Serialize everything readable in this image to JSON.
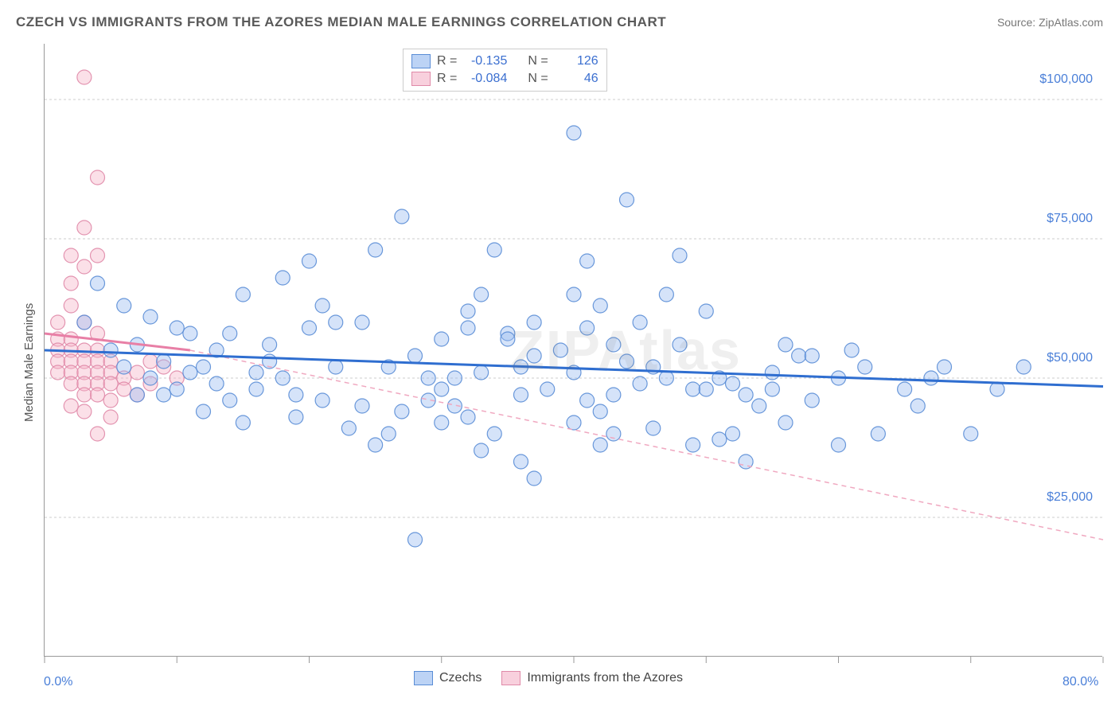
{
  "title": "CZECH VS IMMIGRANTS FROM THE AZORES MEDIAN MALE EARNINGS CORRELATION CHART",
  "source": "Source: ZipAtlas.com",
  "watermark": "ZIPAtlas",
  "y_axis_label": "Median Male Earnings",
  "chart": {
    "type": "scatter",
    "xlim": [
      0,
      80
    ],
    "ylim": [
      0,
      110000
    ],
    "x_ticks_minor": [
      0,
      10,
      20,
      30,
      40,
      50,
      60,
      70,
      80
    ],
    "x_labels": [
      {
        "v": 0,
        "label": "0.0%"
      },
      {
        "v": 80,
        "label": "80.0%"
      }
    ],
    "y_gridlines": [
      25000,
      50000,
      75000,
      100000
    ],
    "y_labels": [
      {
        "v": 25000,
        "label": "$25,000"
      },
      {
        "v": 50000,
        "label": "$50,000"
      },
      {
        "v": 75000,
        "label": "$75,000"
      },
      {
        "v": 100000,
        "label": "$100,000"
      }
    ],
    "background_color": "#ffffff",
    "grid_color": "#cccccc",
    "marker_radius": 9,
    "marker_opacity": 0.42,
    "series": [
      {
        "name": "Czechs",
        "fill": "#9cbdf0",
        "stroke": "#5a8dd6",
        "R": "-0.135",
        "N": "126",
        "trend": {
          "x1": 0,
          "y1": 55000,
          "x2": 80,
          "y2": 48500,
          "color": "#2f6ed0",
          "width": 3,
          "dash": "none"
        },
        "points": [
          [
            4,
            67000
          ],
          [
            3,
            60000
          ],
          [
            7,
            47000
          ],
          [
            9,
            53000
          ],
          [
            5,
            55000
          ],
          [
            6,
            63000
          ],
          [
            10,
            48000
          ],
          [
            12,
            52000
          ],
          [
            11,
            58000
          ],
          [
            8,
            50000
          ],
          [
            13,
            55000
          ],
          [
            14,
            46000
          ],
          [
            15,
            65000
          ],
          [
            16,
            51000
          ],
          [
            17,
            53000
          ],
          [
            18,
            68000
          ],
          [
            19,
            43000
          ],
          [
            20,
            71000
          ],
          [
            21,
            46000
          ],
          [
            22,
            60000
          ],
          [
            12,
            44000
          ],
          [
            13,
            49000
          ],
          [
            14,
            58000
          ],
          [
            15,
            42000
          ],
          [
            16,
            48000
          ],
          [
            17,
            56000
          ],
          [
            18,
            50000
          ],
          [
            19,
            47000
          ],
          [
            20,
            59000
          ],
          [
            21,
            63000
          ],
          [
            22,
            52000
          ],
          [
            23,
            41000
          ],
          [
            24,
            45000
          ],
          [
            24,
            60000
          ],
          [
            25,
            73000
          ],
          [
            26,
            52000
          ],
          [
            27,
            79000
          ],
          [
            28,
            54000
          ],
          [
            29,
            46000
          ],
          [
            30,
            57000
          ],
          [
            30,
            48000
          ],
          [
            31,
            50000
          ],
          [
            32,
            62000
          ],
          [
            32,
            59000
          ],
          [
            33,
            65000
          ],
          [
            33,
            51000
          ],
          [
            34,
            73000
          ],
          [
            35,
            58000
          ],
          [
            36,
            47000
          ],
          [
            37,
            54000
          ],
          [
            25,
            38000
          ],
          [
            26,
            40000
          ],
          [
            27,
            44000
          ],
          [
            28,
            21000
          ],
          [
            29,
            50000
          ],
          [
            30,
            42000
          ],
          [
            31,
            45000
          ],
          [
            32,
            43000
          ],
          [
            33,
            37000
          ],
          [
            34,
            40000
          ],
          [
            35,
            57000
          ],
          [
            36,
            52000
          ],
          [
            37,
            60000
          ],
          [
            38,
            48000
          ],
          [
            39,
            55000
          ],
          [
            40,
            51000
          ],
          [
            40,
            94000
          ],
          [
            41,
            71000
          ],
          [
            42,
            38000
          ],
          [
            43,
            47000
          ],
          [
            44,
            53000
          ],
          [
            44,
            82000
          ],
          [
            45,
            60000
          ],
          [
            45,
            49000
          ],
          [
            46,
            41000
          ],
          [
            47,
            50000
          ],
          [
            48,
            56000
          ],
          [
            49,
            48000
          ],
          [
            50,
            62000
          ],
          [
            51,
            39000
          ],
          [
            40,
            42000
          ],
          [
            41,
            46000
          ],
          [
            42,
            44000
          ],
          [
            43,
            40000
          ],
          [
            36,
            35000
          ],
          [
            37,
            32000
          ],
          [
            46,
            52000
          ],
          [
            47,
            65000
          ],
          [
            48,
            72000
          ],
          [
            49,
            38000
          ],
          [
            50,
            48000
          ],
          [
            51,
            50000
          ],
          [
            52,
            49000
          ],
          [
            53,
            47000
          ],
          [
            54,
            45000
          ],
          [
            55,
            51000
          ],
          [
            56,
            56000
          ],
          [
            57,
            54000
          ],
          [
            58,
            46000
          ],
          [
            60,
            38000
          ],
          [
            40,
            65000
          ],
          [
            41,
            59000
          ],
          [
            42,
            63000
          ],
          [
            43,
            56000
          ],
          [
            52,
            40000
          ],
          [
            53,
            35000
          ],
          [
            55,
            48000
          ],
          [
            56,
            42000
          ],
          [
            58,
            54000
          ],
          [
            60,
            50000
          ],
          [
            61,
            55000
          ],
          [
            62,
            52000
          ],
          [
            63,
            40000
          ],
          [
            65,
            48000
          ],
          [
            66,
            45000
          ],
          [
            67,
            50000
          ],
          [
            68,
            52000
          ],
          [
            70,
            40000
          ],
          [
            72,
            48000
          ],
          [
            74,
            52000
          ],
          [
            6,
            52000
          ],
          [
            7,
            56000
          ],
          [
            8,
            61000
          ],
          [
            9,
            47000
          ],
          [
            10,
            59000
          ],
          [
            11,
            51000
          ]
        ]
      },
      {
        "name": "Immigrants from the Azores",
        "fill": "#f5b5c8",
        "stroke": "#e08aa8",
        "R": "-0.084",
        "N": "46",
        "trend_solid": {
          "x1": 0,
          "y1": 58000,
          "x2": 11,
          "y2": 55000,
          "color": "#e87fa6",
          "width": 3
        },
        "trend_dash": {
          "x1": 11,
          "y1": 55000,
          "x2": 80,
          "y2": 21000,
          "color": "#f0a8c0",
          "width": 1.5,
          "dash": "6 5"
        },
        "points": [
          [
            3,
            104000
          ],
          [
            4,
            86000
          ],
          [
            3,
            77000
          ],
          [
            2,
            72000
          ],
          [
            4,
            72000
          ],
          [
            3,
            70000
          ],
          [
            2,
            67000
          ],
          [
            2,
            63000
          ],
          [
            1,
            60000
          ],
          [
            3,
            60000
          ],
          [
            1,
            57000
          ],
          [
            2,
            57000
          ],
          [
            4,
            58000
          ],
          [
            1,
            55000
          ],
          [
            2,
            55000
          ],
          [
            3,
            55000
          ],
          [
            4,
            55000
          ],
          [
            1,
            53000
          ],
          [
            2,
            53000
          ],
          [
            3,
            53000
          ],
          [
            4,
            53000
          ],
          [
            5,
            53000
          ],
          [
            1,
            51000
          ],
          [
            2,
            51000
          ],
          [
            3,
            51000
          ],
          [
            4,
            51000
          ],
          [
            5,
            51000
          ],
          [
            2,
            49000
          ],
          [
            3,
            49000
          ],
          [
            4,
            49000
          ],
          [
            5,
            49000
          ],
          [
            6,
            50000
          ],
          [
            7,
            51000
          ],
          [
            8,
            53000
          ],
          [
            3,
            47000
          ],
          [
            4,
            47000
          ],
          [
            5,
            46000
          ],
          [
            2,
            45000
          ],
          [
            3,
            44000
          ],
          [
            4,
            40000
          ],
          [
            5,
            43000
          ],
          [
            6,
            48000
          ],
          [
            7,
            47000
          ],
          [
            8,
            49000
          ],
          [
            9,
            52000
          ],
          [
            10,
            50000
          ]
        ]
      }
    ]
  },
  "stats_box": {
    "r_label": "R =",
    "n_label": "N ="
  },
  "legend": {
    "label_a": "Czechs",
    "label_b": "Immigrants from the Azores"
  }
}
